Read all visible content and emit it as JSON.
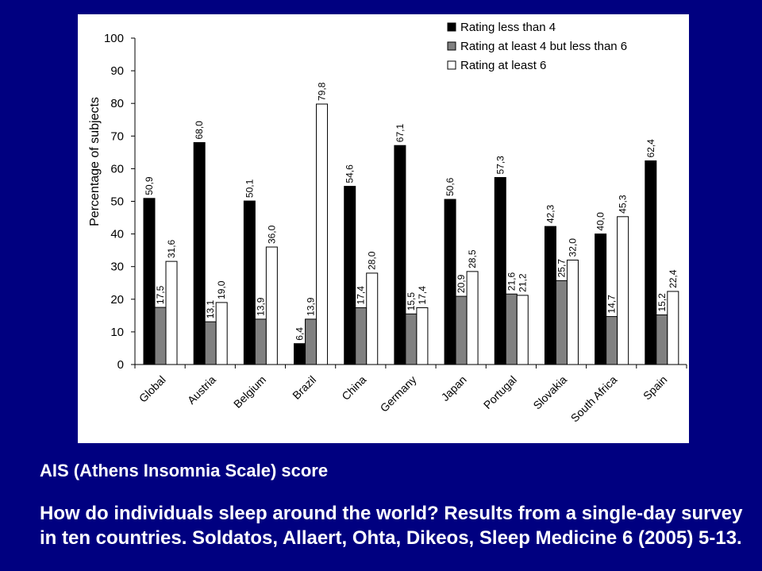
{
  "chart_data": {
    "type": "bar",
    "categories": [
      "Global",
      "Austria",
      "Belgium",
      "Brazil",
      "China",
      "Germany",
      "Japan",
      "Portugal",
      "Slovakia",
      "South Africa",
      "Spain"
    ],
    "series": [
      {
        "name": "Rating less than 4",
        "color": "#000000",
        "values": [
          50.9,
          68.0,
          50.1,
          6.4,
          54.6,
          67.1,
          50.6,
          57.3,
          42.3,
          40.0,
          62.4
        ],
        "labels": [
          "50,9",
          "68,0",
          "50,1",
          "6,4",
          "54,6",
          "67,1",
          "50,6",
          "57,3",
          "42,3",
          "40,0",
          "62,4"
        ]
      },
      {
        "name": "Rating at least 4 but less than 6",
        "color": "#808080",
        "values": [
          17.5,
          13.1,
          13.9,
          13.9,
          17.4,
          15.5,
          20.9,
          21.6,
          25.7,
          14.7,
          15.2
        ],
        "labels": [
          "17,5",
          "13,1",
          "13,9",
          "13,9",
          "17,4",
          "15,5",
          "20,9",
          "21,6",
          "25,7",
          "14,7",
          "15,2"
        ]
      },
      {
        "name": "Rating at least 6",
        "color": "#ffffff",
        "values": [
          31.6,
          19.0,
          36.0,
          79.8,
          28.0,
          17.4,
          28.5,
          21.2,
          32.0,
          45.3,
          22.4
        ],
        "labels": [
          "31,6",
          "19,0",
          "36,0",
          "79,8",
          "28,0",
          "17,4",
          "28,5",
          "21,2",
          "32,0",
          "45,3",
          "22,4"
        ]
      }
    ],
    "ylabel": "Percentage of subjects",
    "xlabel": "",
    "ylim": [
      0,
      100
    ],
    "yticks": [
      0,
      10,
      20,
      30,
      40,
      50,
      60,
      70,
      80,
      90,
      100
    ],
    "grid": false,
    "legend_position": "top-right"
  },
  "captions": {
    "scale": "AIS (Athens Insomnia Scale) score",
    "citation_line1": "How do individuals sleep around the world? Results from a single-day survey",
    "citation_line2": "in ten countries. Soldatos, Allaert, Ohta, Dikeos, Sleep Medicine 6 (2005) 5-13."
  }
}
